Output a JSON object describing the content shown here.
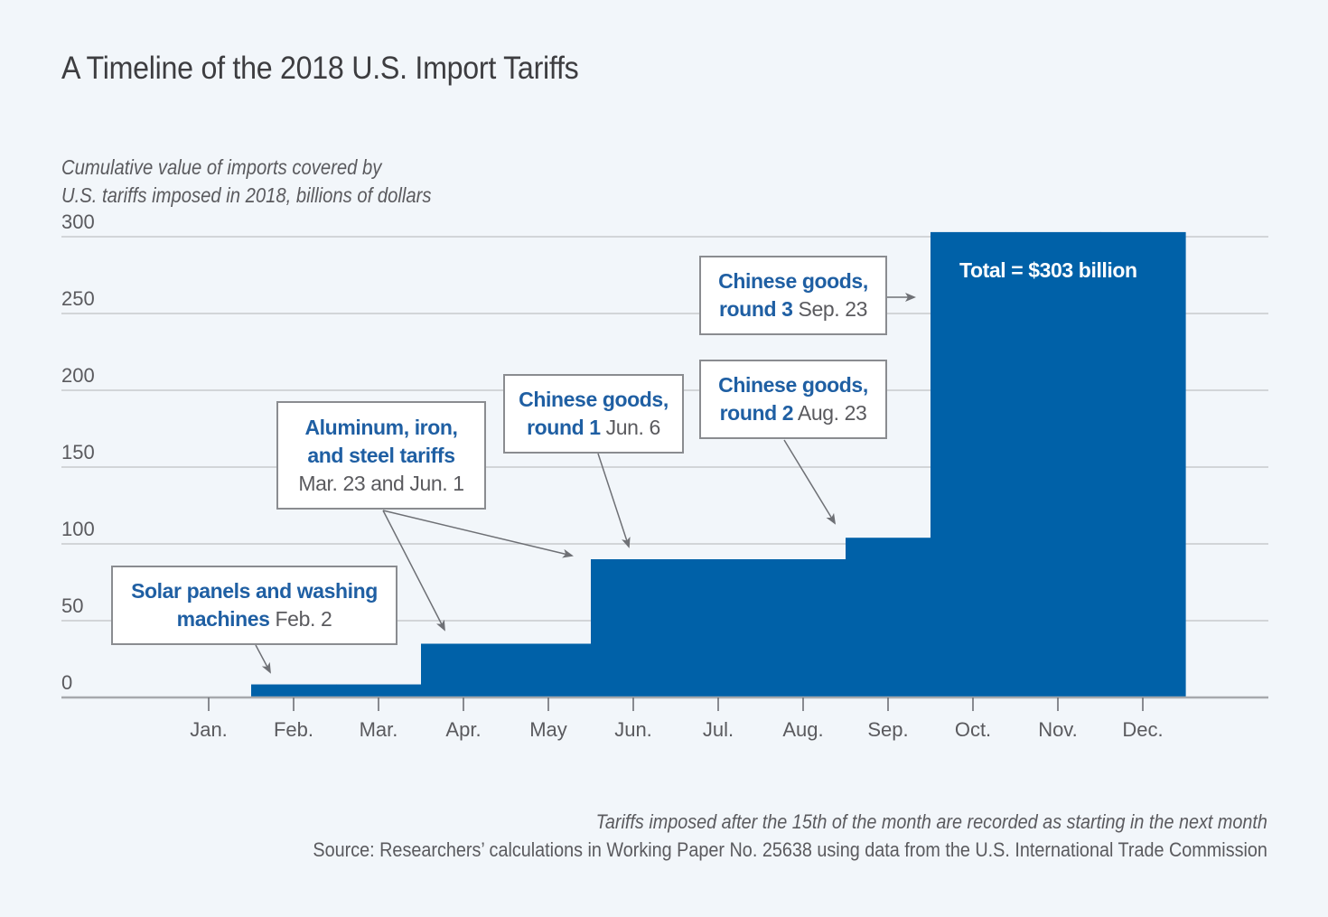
{
  "title": "A Timeline of the 2018 U.S. Import Tariffs",
  "colors": {
    "bar": "#0061a8",
    "annotation_bold": "#1f5fa3",
    "text": "#5a5a5e",
    "gridline": "#c8cacd",
    "background": "#f2f6fa"
  },
  "chart_data": {
    "type": "area",
    "subtype": "step",
    "title": "A Timeline of the 2018 U.S. Import Tariffs",
    "ylabel": [
      "Cumulative value of imports covered by",
      "U.S. tariffs imposed in 2018, billions of dollars"
    ],
    "xlabel": "",
    "categories": [
      "Jan.",
      "Feb.",
      "Mar.",
      "Apr.",
      "May",
      "Jun.",
      "Jul.",
      "Aug.",
      "Sep.",
      "Oct.",
      "Nov.",
      "Dec."
    ],
    "values": [
      0,
      8.5,
      8.5,
      35,
      35,
      90,
      90,
      90,
      104,
      303,
      303,
      303
    ],
    "ylim": [
      0,
      300
    ],
    "yticks": [
      0,
      50,
      100,
      150,
      200,
      250,
      300
    ],
    "grid": true,
    "annotations": [
      {
        "bold": "Solar panels and washing machines",
        "date": "Feb. 2",
        "lines": [
          [
            "Solar panels and washing",
            ""
          ],
          [
            "machines",
            "Feb. 2"
          ]
        ],
        "target_month": "Feb."
      },
      {
        "bold": "Aluminum, iron, and steel tariffs",
        "date": "Mar. 23 and Jun. 1",
        "lines": [
          [
            "Aluminum, iron,",
            ""
          ],
          [
            "and steel tariffs",
            ""
          ],
          [
            "",
            "Mar. 23 and Jun. 1"
          ]
        ],
        "target_month": [
          "Apr.",
          "Jun."
        ]
      },
      {
        "bold": "Chinese goods, round 1",
        "date": "Jun. 6",
        "lines": [
          [
            "Chinese goods,",
            ""
          ],
          [
            "round 1",
            "Jun. 6"
          ]
        ],
        "target_month": "Jun."
      },
      {
        "bold": "Chinese goods, round 2",
        "date": "Aug. 23",
        "lines": [
          [
            "Chinese goods,",
            ""
          ],
          [
            "round 2",
            "Aug. 23"
          ]
        ],
        "target_month": "Sep."
      },
      {
        "bold": "Chinese goods, round 3",
        "date": "Sep. 23",
        "lines": [
          [
            "Chinese goods,",
            ""
          ],
          [
            "round 3",
            "Sep. 23"
          ]
        ],
        "target_month": "Oct."
      }
    ],
    "total_label": "Total = $303 billion"
  },
  "footnote": {
    "note": "Tariffs imposed after the 15th of the month are recorded as starting in the next month",
    "source": "Source: Researchers’ calculations in Working Paper No. 25638 using data from the U.S. International Trade Commission"
  }
}
